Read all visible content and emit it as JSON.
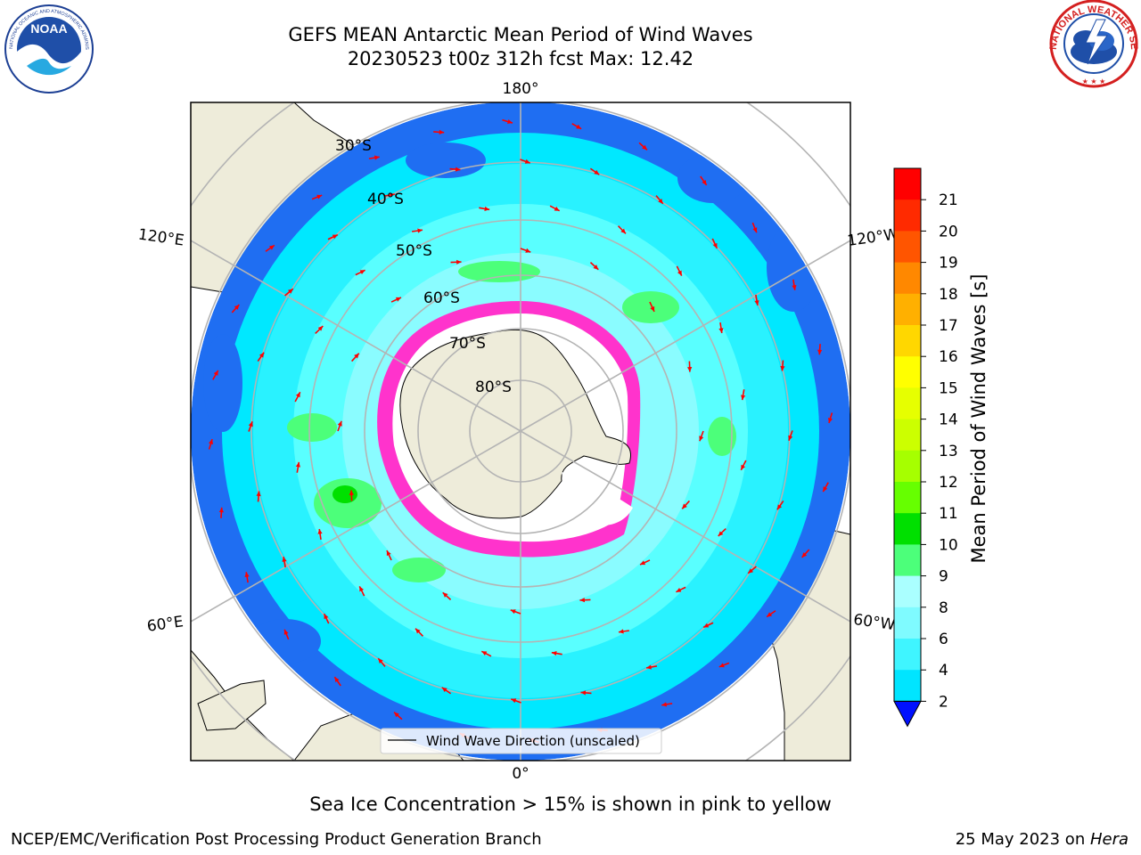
{
  "header": {
    "title_line1": "GEFS MEAN Antarctic Mean Period of Wind Waves",
    "title_line2": "20230523 t00z 312h fcst   Max: 12.42"
  },
  "logos": {
    "left": "noaa-logo",
    "left_text": "NOAA",
    "left_ring_text": "NATIONAL OCEANIC AND ATMOSPHERIC ADMINISTRATION · U.S. DEPARTMENT OF COMMERCE",
    "right": "national-weather-service-logo",
    "right_ring_text": "NATIONAL WEATHER SERVICE"
  },
  "map": {
    "projection": "south-polar-stereographic",
    "longitude_labels": {
      "top": "180°",
      "bottom": "0°",
      "upper_left": "120°E",
      "lower_left": "60°E",
      "upper_right": "120°W",
      "lower_right": "60°W"
    },
    "latitude_labels": [
      "30°S",
      "40°S",
      "50°S",
      "60°S",
      "70°S",
      "80°S"
    ],
    "legend_label": "Wind Wave Direction (unscaled)",
    "colors": {
      "land": "#eeecda",
      "ocean_low": "#1f6ef2",
      "ocean_mid": "#00e8ff",
      "ocean_high": "#59ffff",
      "sea_ice": "#ff33cc",
      "arrows": "#ff0000",
      "grid": "#b4b4b4"
    }
  },
  "colorbar": {
    "label": "Mean Period of Wind Waves [s]",
    "ticks": [
      "2",
      "4",
      "6",
      "8",
      "9",
      "10",
      "11",
      "12",
      "13",
      "14",
      "15",
      "16",
      "17",
      "18",
      "19",
      "20",
      "21"
    ],
    "colors": [
      "#0072ff",
      "#00e5ff",
      "#3ff5ff",
      "#7ffbff",
      "#aaffff",
      "#4cff7a",
      "#00e000",
      "#66ff00",
      "#a6ff00",
      "#ccff00",
      "#e6ff00",
      "#ffff00",
      "#ffd700",
      "#ffb000",
      "#ff8800",
      "#ff5500",
      "#ff2a00",
      "#ff0000"
    ],
    "extend_color": "#0010ff"
  },
  "footer": {
    "note": "Sea Ice Concentration > 15% is shown in pink to yellow",
    "credit": "NCEP/EMC/Verification Post Processing Product Generation Branch",
    "date": "25 May 2023 on ",
    "machine": "Hera"
  }
}
